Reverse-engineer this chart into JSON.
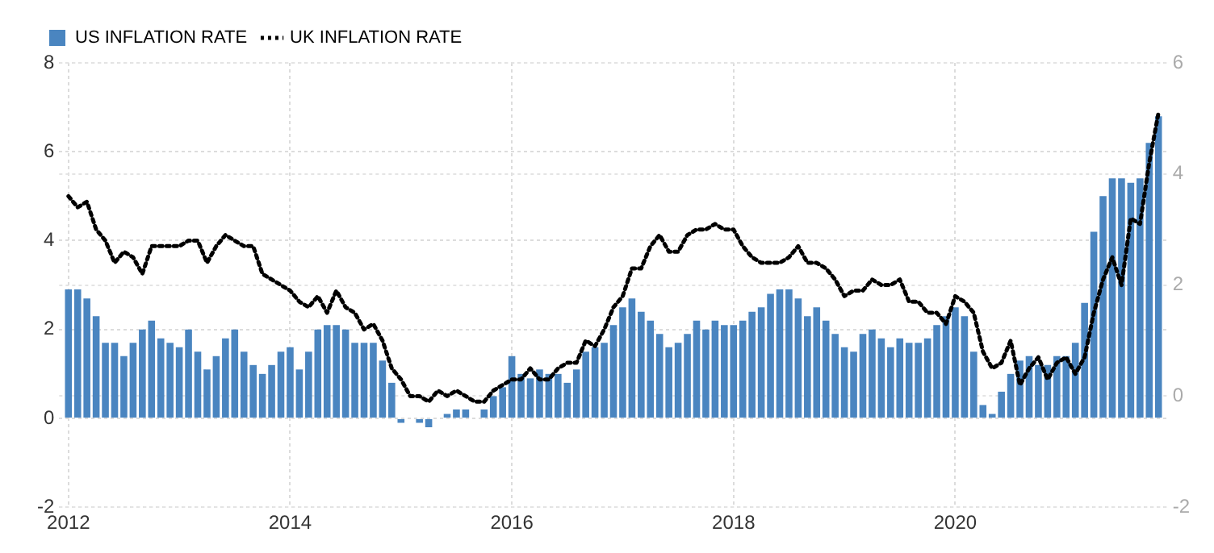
{
  "chart_data": {
    "type": "bar",
    "legend": "top left",
    "grid": true,
    "marker": "none",
    "x": [
      "2012-01",
      "2012-02",
      "2012-03",
      "2012-04",
      "2012-05",
      "2012-06",
      "2012-07",
      "2012-08",
      "2012-09",
      "2012-10",
      "2012-11",
      "2012-12",
      "2013-01",
      "2013-02",
      "2013-03",
      "2013-04",
      "2013-05",
      "2013-06",
      "2013-07",
      "2013-08",
      "2013-09",
      "2013-10",
      "2013-11",
      "2013-12",
      "2014-01",
      "2014-02",
      "2014-03",
      "2014-04",
      "2014-05",
      "2014-06",
      "2014-07",
      "2014-08",
      "2014-09",
      "2014-10",
      "2014-11",
      "2014-12",
      "2015-01",
      "2015-02",
      "2015-03",
      "2015-04",
      "2015-05",
      "2015-06",
      "2015-07",
      "2015-08",
      "2015-09",
      "2015-10",
      "2015-11",
      "2015-12",
      "2016-01",
      "2016-02",
      "2016-03",
      "2016-04",
      "2016-05",
      "2016-06",
      "2016-07",
      "2016-08",
      "2016-09",
      "2016-10",
      "2016-11",
      "2016-12",
      "2017-01",
      "2017-02",
      "2017-03",
      "2017-04",
      "2017-05",
      "2017-06",
      "2017-07",
      "2017-08",
      "2017-09",
      "2017-10",
      "2017-11",
      "2017-12",
      "2018-01",
      "2018-02",
      "2018-03",
      "2018-04",
      "2018-05",
      "2018-06",
      "2018-07",
      "2018-08",
      "2018-09",
      "2018-10",
      "2018-11",
      "2018-12",
      "2019-01",
      "2019-02",
      "2019-03",
      "2019-04",
      "2019-05",
      "2019-06",
      "2019-07",
      "2019-08",
      "2019-09",
      "2019-10",
      "2019-11",
      "2019-12",
      "2020-01",
      "2020-02",
      "2020-03",
      "2020-04",
      "2020-05",
      "2020-06",
      "2020-07",
      "2020-08",
      "2020-09",
      "2020-10",
      "2020-11",
      "2020-12",
      "2021-01",
      "2021-02",
      "2021-03",
      "2021-04",
      "2021-05",
      "2021-06",
      "2021-07",
      "2021-08",
      "2021-09",
      "2021-10",
      "2021-11"
    ],
    "xlim": [
      "2011-12",
      "2021-12"
    ],
    "xticks": [
      {
        "value": "2012-01",
        "label": "2012"
      },
      {
        "value": "2014-01",
        "label": "2014"
      },
      {
        "value": "2016-01",
        "label": "2016"
      },
      {
        "value": "2018-01",
        "label": "2018"
      },
      {
        "value": "2020-01",
        "label": "2020"
      }
    ],
    "ylim": [
      -2,
      8
    ],
    "yticks": [
      -2,
      0,
      2,
      4,
      6,
      8
    ],
    "y2lim": [
      -2,
      6
    ],
    "y2ticks": [
      -2,
      0,
      2,
      4,
      6
    ],
    "series": [
      {
        "name": "US INFLATION RATE",
        "color": "#4a85c0",
        "values": [
          2.9,
          2.9,
          2.7,
          2.3,
          1.7,
          1.7,
          1.4,
          1.7,
          2.0,
          2.2,
          1.8,
          1.7,
          1.6,
          2.0,
          1.5,
          1.1,
          1.4,
          1.8,
          2.0,
          1.5,
          1.2,
          1.0,
          1.2,
          1.5,
          1.6,
          1.1,
          1.5,
          2.0,
          2.1,
          2.1,
          2.0,
          1.7,
          1.7,
          1.7,
          1.3,
          0.8,
          -0.1,
          0.0,
          -0.1,
          -0.2,
          0.0,
          0.1,
          0.2,
          0.2,
          0.0,
          0.2,
          0.5,
          0.7,
          1.4,
          1.0,
          0.9,
          1.1,
          1.0,
          1.0,
          0.8,
          1.1,
          1.5,
          1.6,
          1.7,
          2.1,
          2.5,
          2.7,
          2.4,
          2.2,
          1.9,
          1.6,
          1.7,
          1.9,
          2.2,
          2.0,
          2.2,
          2.1,
          2.1,
          2.2,
          2.4,
          2.5,
          2.8,
          2.9,
          2.9,
          2.7,
          2.3,
          2.5,
          2.2,
          1.9,
          1.6,
          1.5,
          1.9,
          2.0,
          1.8,
          1.6,
          1.8,
          1.7,
          1.7,
          1.8,
          2.1,
          2.3,
          2.5,
          2.3,
          1.5,
          0.3,
          0.1,
          0.6,
          1.0,
          1.3,
          1.4,
          1.2,
          1.2,
          1.4,
          1.4,
          1.7,
          2.6,
          4.2,
          5.0,
          5.4,
          5.4,
          5.3,
          5.4,
          6.2,
          6.8
        ]
      },
      {
        "name": "UK INFLATION RATE",
        "type": "line",
        "axis": "y2",
        "color": "#000000",
        "line_style": "dotted",
        "values": [
          3.6,
          3.4,
          3.5,
          3.0,
          2.8,
          2.4,
          2.6,
          2.5,
          2.2,
          2.7,
          2.7,
          2.7,
          2.7,
          2.8,
          2.8,
          2.4,
          2.7,
          2.9,
          2.8,
          2.7,
          2.7,
          2.2,
          2.1,
          2.0,
          1.9,
          1.7,
          1.6,
          1.8,
          1.5,
          1.9,
          1.6,
          1.5,
          1.2,
          1.3,
          1.0,
          0.5,
          0.3,
          0.0,
          0.0,
          -0.1,
          0.1,
          0.0,
          0.1,
          0.0,
          -0.1,
          -0.1,
          0.1,
          0.2,
          0.3,
          0.3,
          0.5,
          0.3,
          0.3,
          0.5,
          0.6,
          0.6,
          1.0,
          0.9,
          1.2,
          1.6,
          1.8,
          2.3,
          2.3,
          2.7,
          2.9,
          2.6,
          2.6,
          2.9,
          3.0,
          3.0,
          3.1,
          3.0,
          3.0,
          2.7,
          2.5,
          2.4,
          2.4,
          2.4,
          2.5,
          2.7,
          2.4,
          2.4,
          2.3,
          2.1,
          1.8,
          1.9,
          1.9,
          2.1,
          2.0,
          2.0,
          2.1,
          1.7,
          1.7,
          1.5,
          1.5,
          1.3,
          1.8,
          1.7,
          1.5,
          0.8,
          0.5,
          0.6,
          1.0,
          0.2,
          0.5,
          0.7,
          0.3,
          0.6,
          0.7,
          0.4,
          0.7,
          1.5,
          2.1,
          2.5,
          2.0,
          3.2,
          3.1,
          4.2,
          5.1
        ]
      }
    ]
  }
}
